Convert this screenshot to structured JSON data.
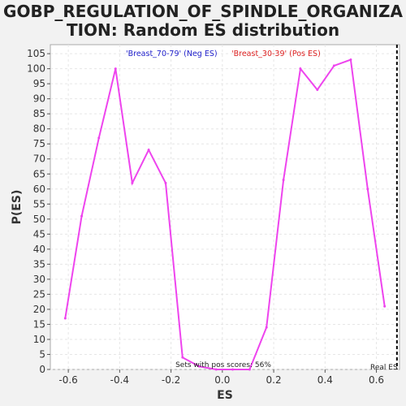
{
  "chart_data": {
    "type": "line",
    "title_lines": [
      "GOBP_REGULATION_OF_SPINDLE_ORGANIZA",
      "TION: Random ES distribution"
    ],
    "xlabel": "ES",
    "ylabel": "P(ES)",
    "xlim": [
      -0.67,
      0.69
    ],
    "ylim": [
      0,
      108
    ],
    "x_ticks": [
      -0.6,
      -0.4,
      -0.2,
      0.0,
      0.2,
      0.4,
      0.6
    ],
    "x_tick_labels": [
      "-0.6",
      "-0.4",
      "-0.2",
      "0.0",
      "0.2",
      "0.4",
      "0.6"
    ],
    "y_ticks": [
      0,
      5,
      10,
      15,
      20,
      25,
      30,
      35,
      40,
      45,
      50,
      55,
      60,
      65,
      70,
      75,
      80,
      85,
      90,
      95,
      100,
      105
    ],
    "y_tick_labels": [
      "0",
      "5",
      "10",
      "15",
      "20",
      "25",
      "30",
      "35",
      "40",
      "45",
      "50",
      "55",
      "60",
      "65",
      "70",
      "75",
      "80",
      "85",
      "90",
      "95",
      "100",
      "105"
    ],
    "grid": true,
    "legend": [
      {
        "label": "'Breast_70-79' (Neg ES)",
        "color": "#2222cc"
      },
      {
        "label": "'Breast_30-39' (Pos ES)",
        "color": "#dd2222"
      }
    ],
    "series": [
      {
        "color": "#ee44ee",
        "x": [
          -0.612,
          -0.548,
          -0.481,
          -0.416,
          -0.351,
          -0.287,
          -0.221,
          -0.155,
          -0.09,
          -0.024,
          0.04,
          0.106,
          0.172,
          0.238,
          0.304,
          0.37,
          0.435,
          0.5,
          0.566,
          0.632
        ],
        "y": [
          17,
          51,
          77,
          100,
          62,
          73,
          62,
          4,
          1,
          0,
          0,
          0,
          14,
          63,
          100,
          93,
          101,
          103,
          60,
          21
        ]
      }
    ],
    "real_es": {
      "x": 0.68,
      "label": "Real ES"
    },
    "annotation": "Sets with pos scores: 56%"
  }
}
